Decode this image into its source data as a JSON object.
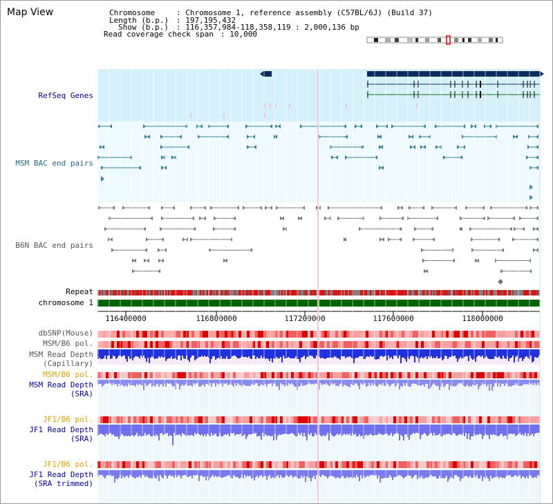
{
  "window": {
    "title": "Map View"
  },
  "info": {
    "chromosome_key": "Chromosome",
    "chromosome_val": ": Chromosome 1, reference assembly (C57BL/6J) (Build 37)",
    "length_key": "Length (b.p.)",
    "length_val": ": 197,195,432",
    "show_key": "Show (b.p.)",
    "show_val": ": 116,357,984-118,358,119 : 2,000,136 bp",
    "coverage_key": "Read coverage check span",
    "coverage_val": ": 10,000"
  },
  "tracks": {
    "refseq": "RefSeq Genes",
    "msm_bac": "MSM BAC end pairs",
    "b6n_bac": "B6N BAC end pairs",
    "repeat": "Repeat",
    "chromosome": "chromosome 1",
    "dbsnp": "dbSNP(Mouse)",
    "msm_b6_pol_1": "MSM/B6 pol.",
    "msm_read_depth_cap_1": "MSM Read Depth",
    "msm_read_depth_cap_2": "(Capillary)",
    "msm_b6_pol_2": "MSM/B6 pol.",
    "msm_read_depth_sra_1": "MSM Read Depth",
    "msm_read_depth_sra_2": "(SRA)",
    "jf1_b6_pol_1": "JF1/B6 pol.",
    "jf1_read_depth_sra_1": "JF1 Read Depth",
    "jf1_read_depth_sra_2": "(SRA)",
    "jf1_b6_pol_2": "JF1/B6 pol.",
    "jf1_read_depth_trim_1": "JF1 Read Depth",
    "jf1_read_depth_trim_2": "(SRA trimmed)"
  },
  "axis": {
    "ticks": [
      "116400000",
      "116800000",
      "117200000",
      "117600000",
      "118000000"
    ]
  },
  "colors": {
    "refseq_label": "#00008b",
    "msm_bac_label": "#1f6b8a",
    "b6n_bac_label": "#555555",
    "orange_label": "#e0a000",
    "blue_label": "#0000a0",
    "chromosome_bar": "#006400",
    "refseq_bg": "#d6f0fa",
    "bac_bg": "#eefafd",
    "lower_bg": "#e8f6fb",
    "teal": "#2f7f99",
    "gray": "#666666",
    "depth_dark": "#2030dd",
    "depth_light": "#8080f0"
  }
}
